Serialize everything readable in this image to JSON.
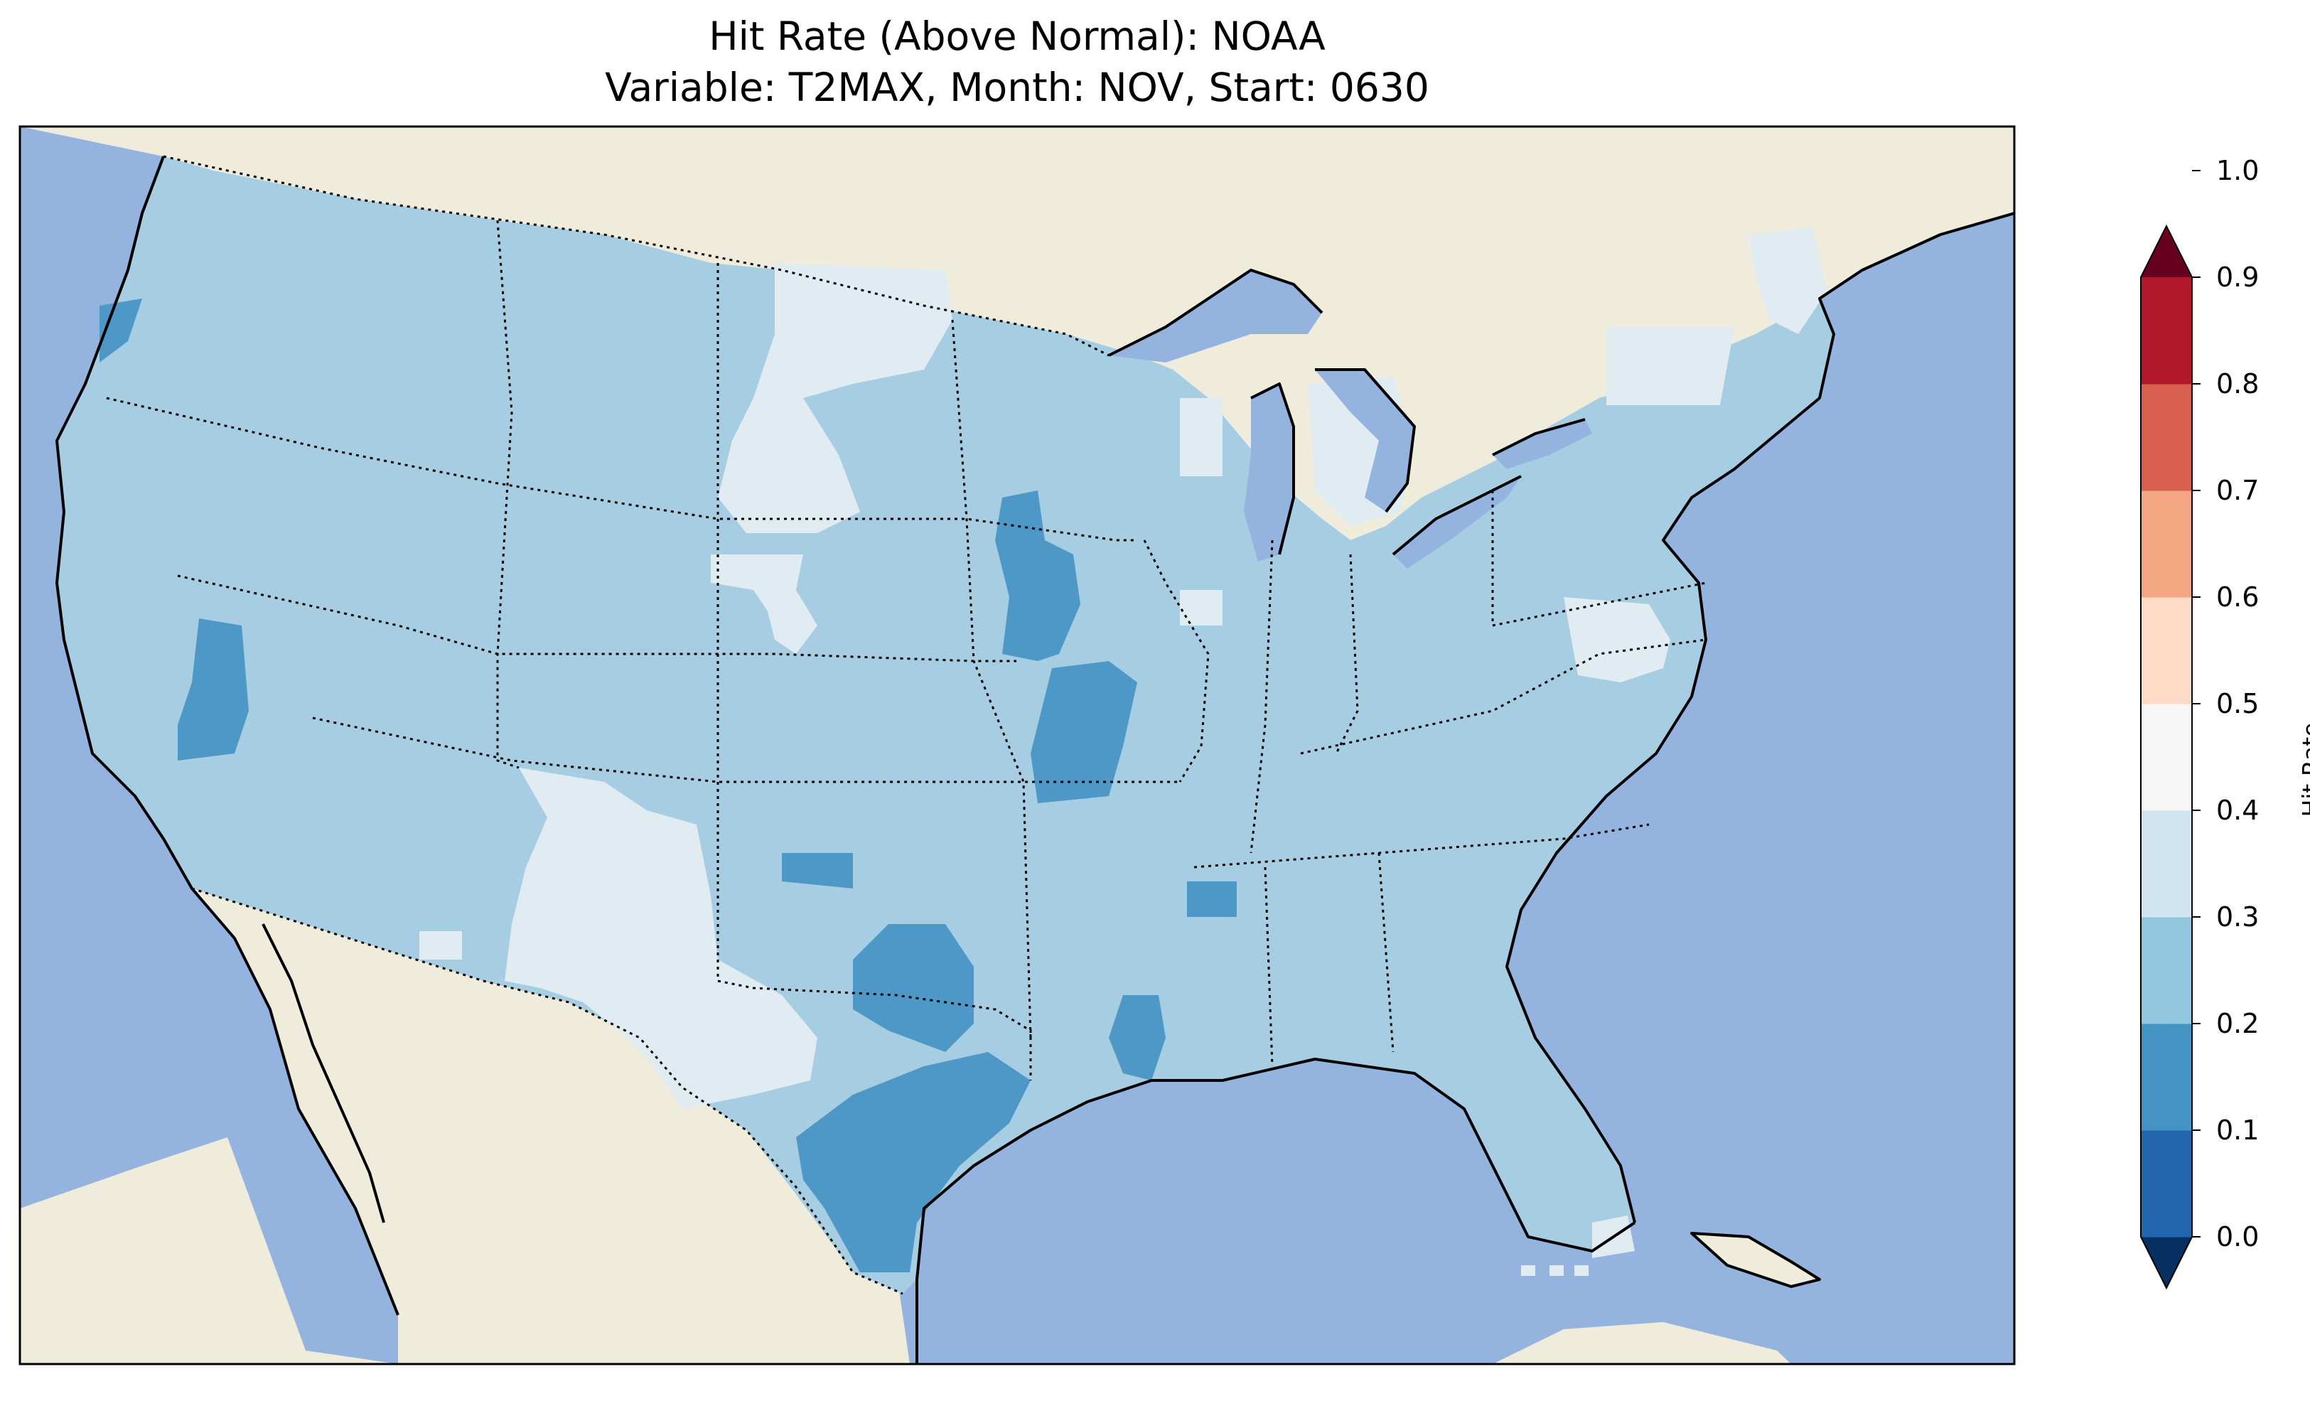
{
  "title_line1": "Hit Rate (Above Normal): NOAA",
  "title_line2": "Variable: T2MAX, Month: NOV, Start: 0630",
  "colorbar": {
    "label": "Hit Rate",
    "ticks": [
      "0.0",
      "0.1",
      "0.2",
      "0.3",
      "0.4",
      "0.5",
      "0.6",
      "0.7",
      "0.8",
      "0.9",
      "1.0"
    ],
    "colors": [
      "#053061",
      "#2166ac",
      "#4393c3",
      "#92c5de",
      "#d1e5f0",
      "#f7f7f7",
      "#fddbc7",
      "#f4a582",
      "#d6604d",
      "#b2182b",
      "#67001f"
    ],
    "extend": "both"
  },
  "map": {
    "ocean_color": "#95b3df",
    "land_color": "#efecdc",
    "hit_rate_shades": {
      "0.2-0.3": "#4d98c7",
      "0.3-0.4": "#a7cde2",
      "0.4-0.5": "#e0ebf2"
    }
  }
}
